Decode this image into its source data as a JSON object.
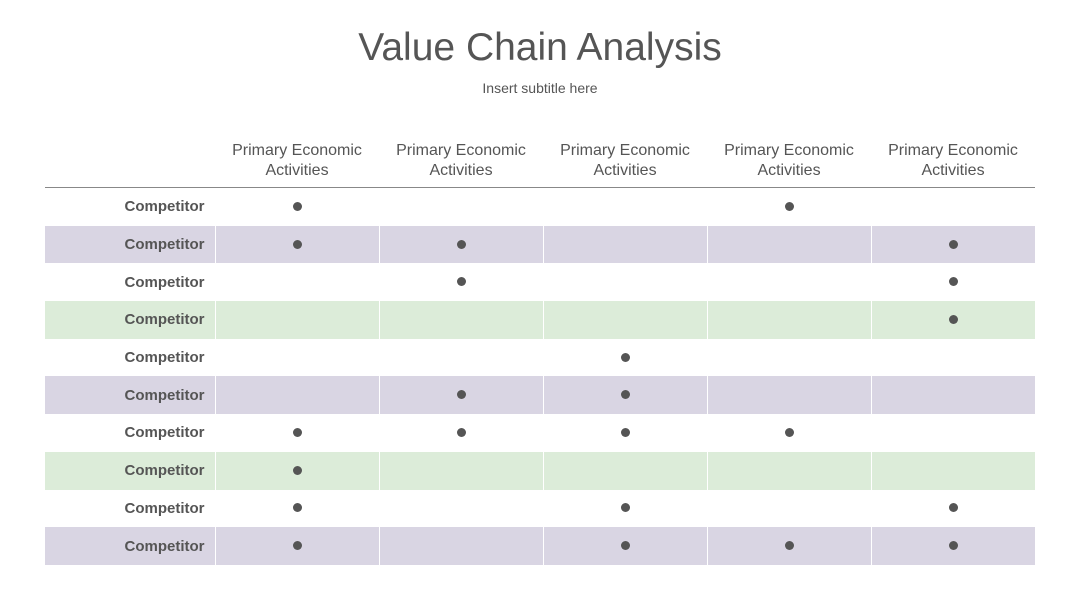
{
  "header": {
    "title": "Value Chain Analysis",
    "subtitle": "Insert subtitle here"
  },
  "table": {
    "headers": [
      "Primary Economic Activities",
      "Primary Economic Activities",
      "Primary Economic Activities",
      "Primary Economic Activities",
      "Primary Economic Activities"
    ],
    "rows": [
      {
        "label": "Competitor",
        "color": "#ffffff",
        "marks": [
          true,
          false,
          false,
          true,
          false
        ]
      },
      {
        "label": "Competitor",
        "color": "#d9d5e3",
        "marks": [
          true,
          true,
          false,
          false,
          true
        ]
      },
      {
        "label": "Competitor",
        "color": "#ffffff",
        "marks": [
          false,
          true,
          false,
          false,
          true
        ]
      },
      {
        "label": "Competitor",
        "color": "#dcecd9",
        "marks": [
          false,
          false,
          false,
          false,
          true
        ]
      },
      {
        "label": "Competitor",
        "color": "#ffffff",
        "marks": [
          false,
          false,
          true,
          false,
          false
        ]
      },
      {
        "label": "Competitor",
        "color": "#d9d5e3",
        "marks": [
          false,
          true,
          true,
          false,
          false
        ]
      },
      {
        "label": "Competitor",
        "color": "#ffffff",
        "marks": [
          true,
          true,
          true,
          true,
          false
        ]
      },
      {
        "label": "Competitor",
        "color": "#dcecd9",
        "marks": [
          true,
          false,
          false,
          false,
          false
        ]
      },
      {
        "label": "Competitor",
        "color": "#ffffff",
        "marks": [
          true,
          false,
          true,
          false,
          true
        ]
      },
      {
        "label": "Competitor",
        "color": "#d9d5e3",
        "marks": [
          true,
          false,
          true,
          true,
          true
        ]
      }
    ]
  }
}
